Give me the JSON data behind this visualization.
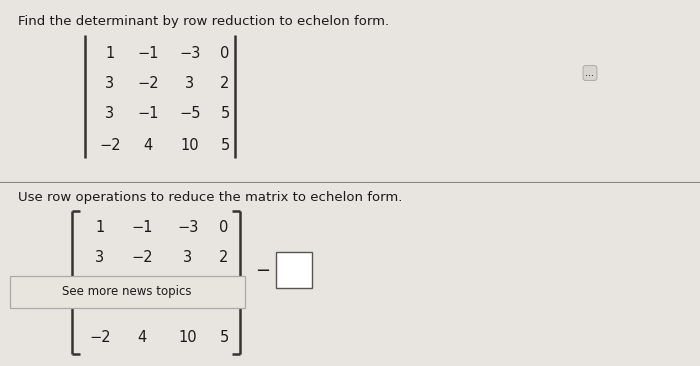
{
  "bg_top": "#e8e5e0",
  "bg_bottom": "#dedad4",
  "divider_color": "#aaaaaa",
  "title1": "Find the determinant by row reduction to echelon form.",
  "title2": "Use row operations to reduce the matrix to echelon form.",
  "matrix1": [
    [
      "1",
      "−1",
      "−3",
      "0"
    ],
    [
      "3",
      "−2",
      "3",
      "2"
    ],
    [
      "3",
      "−1",
      "−5",
      "5"
    ],
    [
      "−2",
      "4",
      "10",
      "5"
    ]
  ],
  "matrix2_rows": [
    [
      "1",
      "−1",
      "−3",
      "0"
    ],
    [
      "3",
      "−2",
      "3",
      "2"
    ],
    [
      "−2",
      "4",
      "10",
      "5"
    ]
  ],
  "dots_label": "...",
  "minus_sign": "−",
  "text_color": "#1a1a1a",
  "bar_color": "#333333",
  "news_box_text": "See more news topics",
  "news_box_bg": "#e8e5df",
  "font_size_title": 9.5,
  "font_size_matrix": 10.5,
  "font_size_news": 8.5
}
